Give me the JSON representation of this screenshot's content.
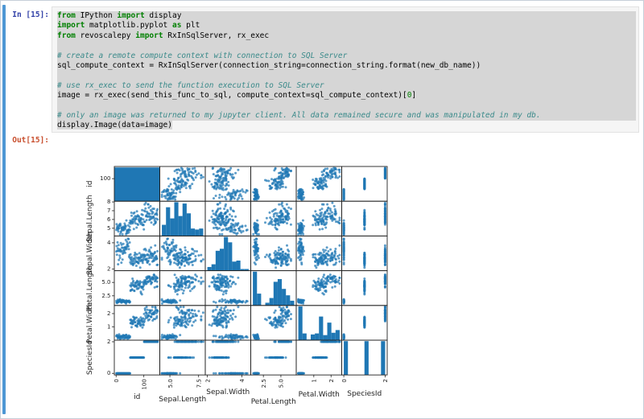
{
  "colors": {
    "selection_bar": "#4e97d4",
    "in_prompt": "#3342a8",
    "out_prompt": "#c9502f",
    "keyword": "#008000",
    "comment": "#3a8a8a",
    "number": "#008000",
    "cell_bg": "#f5f5f5",
    "selection": "#d6d6d6",
    "point": "#1f77b4"
  },
  "input_cell": {
    "prompt": "In [15]:",
    "lines": [
      {
        "sel": "full",
        "seg": [
          [
            "k",
            "from"
          ],
          [
            "p",
            " IPython "
          ],
          [
            "k",
            "import"
          ],
          [
            "p",
            " display"
          ]
        ]
      },
      {
        "sel": "full",
        "seg": [
          [
            "k",
            "import"
          ],
          [
            "p",
            " matplotlib.pyplot "
          ],
          [
            "k",
            "as"
          ],
          [
            "p",
            " plt"
          ]
        ]
      },
      {
        "sel": "full",
        "seg": [
          [
            "k",
            "from"
          ],
          [
            "p",
            " revoscalepy "
          ],
          [
            "k",
            "import"
          ],
          [
            "p",
            " RxInSqlServer, rx_exec"
          ]
        ]
      },
      {
        "sel": "full",
        "seg": []
      },
      {
        "sel": "full",
        "seg": [
          [
            "c",
            "# create a remote compute context with connection to SQL Server"
          ]
        ]
      },
      {
        "sel": "full",
        "seg": [
          [
            "p",
            "sql_compute_context = RxInSqlServer(connection_string=connection_string.format(new_db_name))"
          ]
        ]
      },
      {
        "sel": "full",
        "seg": []
      },
      {
        "sel": "full",
        "seg": [
          [
            "c",
            "# use rx_exec to send the function execution to SQL Server"
          ]
        ]
      },
      {
        "sel": "full",
        "seg": [
          [
            "p",
            "image = rx_exec(send_this_func_to_sql, compute_context=sql_compute_context)["
          ],
          [
            "n",
            "0"
          ],
          [
            "p",
            "]"
          ]
        ]
      },
      {
        "sel": "full",
        "seg": []
      },
      {
        "sel": "full",
        "seg": [
          [
            "c",
            "# only an image was returned to my jupyter client. All data remained secure and was manipulated in my db."
          ]
        ]
      },
      {
        "sel": "text",
        "seg": [
          [
            "p",
            "display.Image(data=image)"
          ]
        ]
      }
    ]
  },
  "output_cell": {
    "prompt": "Out[15]:"
  },
  "chart_data": {
    "type": "scatter_matrix",
    "dataset": "iris pairs plot (6x6): scatter off-diagonal, histograms on diagonal",
    "point_color": "#1f77b4",
    "n_per_species": 50,
    "seed": 20,
    "variables": [
      {
        "name": "id",
        "lim": [
          -6.5,
          157.5
        ],
        "clamp": [
          1,
          150
        ],
        "y_ticks": [
          "100"
        ],
        "x_ticks": [
          "0",
          "100"
        ],
        "hist": {
          "edges": [
            -6.5,
            157.5
          ],
          "heights": [
            1
          ]
        }
      },
      {
        "name": "Sepal.Length",
        "lim": [
          4.12,
          8.08
        ],
        "clamp": [
          4.3,
          7.9
        ],
        "y_ticks": [
          "5",
          "6",
          "7",
          "8"
        ],
        "x_ticks": [
          "5.0",
          "7.5"
        ],
        "hist": {
          "edges": [
            4.3,
            4.66,
            5.02,
            5.38,
            5.74,
            6.1,
            6.46,
            6.82,
            7.18,
            7.54,
            7.9
          ],
          "heights": [
            0.33,
            0.85,
            0.52,
            1.0,
            0.59,
            0.96,
            0.67,
            0.22,
            0.19,
            0.22
          ]
        }
      },
      {
        "name": "Sepal.Width",
        "lim": [
          1.88,
          4.52
        ],
        "clamp": [
          2.0,
          4.4
        ],
        "y_ticks": [
          "2",
          "4"
        ],
        "x_ticks": [
          "2",
          "4"
        ],
        "hist": {
          "edges": [
            2.0,
            2.24,
            2.48,
            2.72,
            2.96,
            3.2,
            3.44,
            3.68,
            3.92,
            4.16,
            4.4
          ],
          "heights": [
            0.11,
            0.19,
            0.59,
            0.65,
            1.0,
            0.84,
            0.27,
            0.3,
            0.05,
            0.05
          ]
        }
      },
      {
        "name": "Petal.Length",
        "lim": [
          0.7,
          7.19
        ],
        "clamp": [
          1.0,
          6.9
        ],
        "y_ticks": [
          "2.5",
          "5.0"
        ],
        "x_ticks": [
          "2.5",
          "5.0"
        ],
        "hist": {
          "edges": [
            1.0,
            1.59,
            2.18,
            2.77,
            3.36,
            3.95,
            4.54,
            5.13,
            5.72,
            6.31,
            6.9
          ],
          "heights": [
            1.0,
            0.35,
            0,
            0.08,
            0.22,
            0.7,
            0.78,
            0.49,
            0.3,
            0.14
          ]
        }
      },
      {
        "name": "Petal.Width",
        "lim": [
          -0.02,
          2.62
        ],
        "clamp": [
          0.1,
          2.5
        ],
        "y_ticks": [
          "1",
          "2"
        ],
        "x_ticks": [
          "1",
          "2"
        ],
        "hist": {
          "edges": [
            0.1,
            0.34,
            0.58,
            0.82,
            1.06,
            1.3,
            1.54,
            1.78,
            2.02,
            2.26,
            2.5
          ],
          "heights": [
            1.0,
            0.2,
            0.02,
            0.17,
            0.2,
            0.7,
            0.15,
            0.52,
            0.22,
            0.3
          ]
        }
      },
      {
        "name": "SpeciesId",
        "lim": [
          -0.1,
          2.1
        ],
        "clamp": [
          0,
          2
        ],
        "y_ticks": [
          "0",
          "2"
        ],
        "x_ticks": [
          "0",
          "2"
        ],
        "hist": {
          "edges": [
            0,
            0.2,
            1.0,
            1.2,
            1.8,
            2.0
          ],
          "heights": [
            1,
            0,
            1,
            0,
            1
          ]
        }
      }
    ],
    "species": [
      {
        "species_id": 0,
        "id_start": 1,
        "mean": [
          5.01,
          3.43,
          1.46,
          0.25
        ],
        "std": [
          0.35,
          0.38,
          0.17,
          0.1
        ]
      },
      {
        "species_id": 1,
        "id_start": 51,
        "mean": [
          5.94,
          2.77,
          4.26,
          1.33
        ],
        "std": [
          0.52,
          0.31,
          0.47,
          0.2
        ]
      },
      {
        "species_id": 2,
        "id_start": 101,
        "mean": [
          6.59,
          2.97,
          5.55,
          2.03
        ],
        "std": [
          0.64,
          0.32,
          0.55,
          0.27
        ]
      }
    ]
  }
}
